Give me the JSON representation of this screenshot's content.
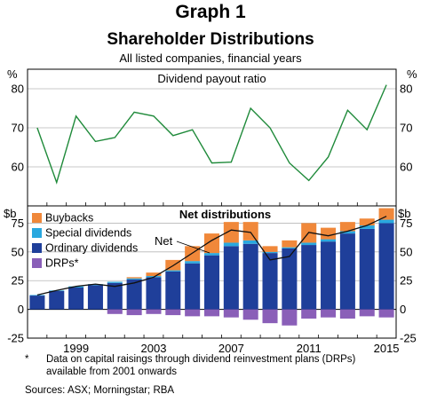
{
  "header": {
    "graph_label": "Graph 1",
    "title": "Shareholder Distributions",
    "subtitle": "All listed companies, financial years"
  },
  "chart_data": [
    {
      "type": "line",
      "title": "Dividend payout ratio",
      "unit": "%",
      "ylim": [
        50,
        85
      ],
      "yticks": [
        60,
        70,
        80
      ],
      "x": [
        1997,
        1998,
        1999,
        2000,
        2001,
        2002,
        2003,
        2004,
        2005,
        2006,
        2007,
        2008,
        2009,
        2010,
        2011,
        2012,
        2013,
        2014,
        2015
      ],
      "series": [
        {
          "values": [
            70,
            56,
            73,
            66.5,
            67.5,
            74,
            73,
            68,
            69.5,
            61,
            61.2,
            75,
            70,
            61,
            56.5,
            62.5,
            74.5,
            69.5,
            81
          ],
          "color": "#1f8a3a"
        }
      ],
      "grid": true
    },
    {
      "type": "bar",
      "title": "Net distributions",
      "unit": "$b",
      "ylim": [
        -25,
        90
      ],
      "yticks": [
        -25,
        0,
        25,
        50,
        75
      ],
      "categories": [
        1997,
        1998,
        1999,
        2000,
        2001,
        2002,
        2003,
        2004,
        2005,
        2006,
        2007,
        2008,
        2009,
        2010,
        2011,
        2012,
        2013,
        2014,
        2015
      ],
      "x_tick_labels": [
        "1999",
        "2003",
        "2007",
        "2011",
        "2015"
      ],
      "stacked": true,
      "series": [
        {
          "name": "Ordinary dividends",
          "color": "#1f3f9a",
          "values": [
            12,
            16,
            19,
            21,
            23,
            26,
            28,
            33,
            40,
            47,
            55,
            57,
            49,
            53,
            56,
            59,
            66,
            70,
            75
          ]
        },
        {
          "name": "Special dividends",
          "color": "#29a8df",
          "values": [
            0.5,
            0.5,
            1,
            1,
            1,
            1,
            1,
            1,
            2,
            2,
            3,
            3,
            1,
            1,
            2,
            2,
            2,
            3,
            3
          ]
        },
        {
          "name": "Buybacks",
          "color": "#f0883a",
          "values": [
            0,
            0,
            0,
            0,
            0,
            1,
            3,
            9,
            13,
            17,
            18,
            16,
            5,
            6,
            17,
            10,
            8,
            6,
            10
          ]
        },
        {
          "name": "DRPs*",
          "color": "#8a5fb8",
          "values": [
            0,
            0,
            0,
            0,
            -4,
            -5,
            -4,
            -5,
            -6,
            -6,
            -7,
            -9,
            -12,
            -14,
            -8,
            -7,
            -8,
            -6,
            -7
          ]
        }
      ],
      "net_line": {
        "label": "Net",
        "values": [
          12.5,
          16.5,
          20,
          22,
          20,
          23,
          28,
          38,
          49,
          60,
          69,
          67,
          43,
          46,
          67,
          64,
          68,
          73,
          81
        ]
      },
      "grid": true
    }
  ],
  "footnote": {
    "marker": "*",
    "text_line1": "Data on capital raisings through dividend reinvestment plans (DRPs)",
    "text_line2": "available from 2001 onwards",
    "sources": "Sources:   ASX; Morningstar; RBA"
  }
}
